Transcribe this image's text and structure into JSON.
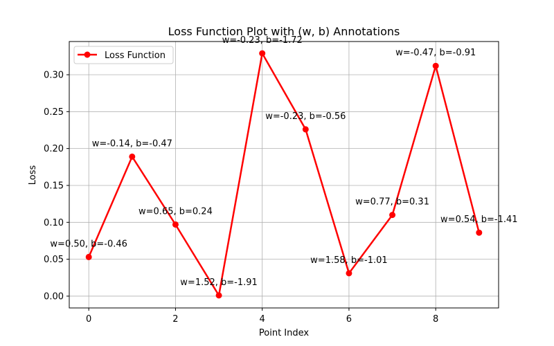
{
  "chart_data": {
    "type": "line",
    "title": "Loss Function Plot with (w, b) Annotations",
    "xlabel": "Point Index",
    "ylabel": "Loss",
    "xlim": [
      -0.45,
      9.45
    ],
    "ylim": [
      -0.016,
      0.345
    ],
    "xticks": [
      0,
      2,
      4,
      6,
      8
    ],
    "yticks": [
      0.0,
      0.05,
      0.1,
      0.15,
      0.2,
      0.25,
      0.3
    ],
    "ytick_labels": [
      "0.00",
      "0.05",
      "0.10",
      "0.15",
      "0.20",
      "0.25",
      "0.30"
    ],
    "grid": true,
    "legend_position": "top-left",
    "series": [
      {
        "name": "Loss Function",
        "color": "#ff0000",
        "marker": "circle",
        "x": [
          0,
          1,
          2,
          3,
          4,
          5,
          6,
          7,
          8,
          9
        ],
        "values": [
          0.053,
          0.189,
          0.097,
          0.001,
          0.329,
          0.226,
          0.031,
          0.11,
          0.312,
          0.086
        ]
      }
    ],
    "annotations": [
      "w=0.50, b=-0.46",
      "w=-0.14, b=-0.47",
      "w=0.65, b=0.24",
      "w=1.52, b=-1.91",
      "w=-0.23, b=-1.72",
      "w=-0.23, b=-0.56",
      "w=1.58, b=-1.01",
      "w=0.77, b=0.31",
      "w=-0.47, b=-0.91",
      "w=0.54, b=-1.41"
    ]
  }
}
